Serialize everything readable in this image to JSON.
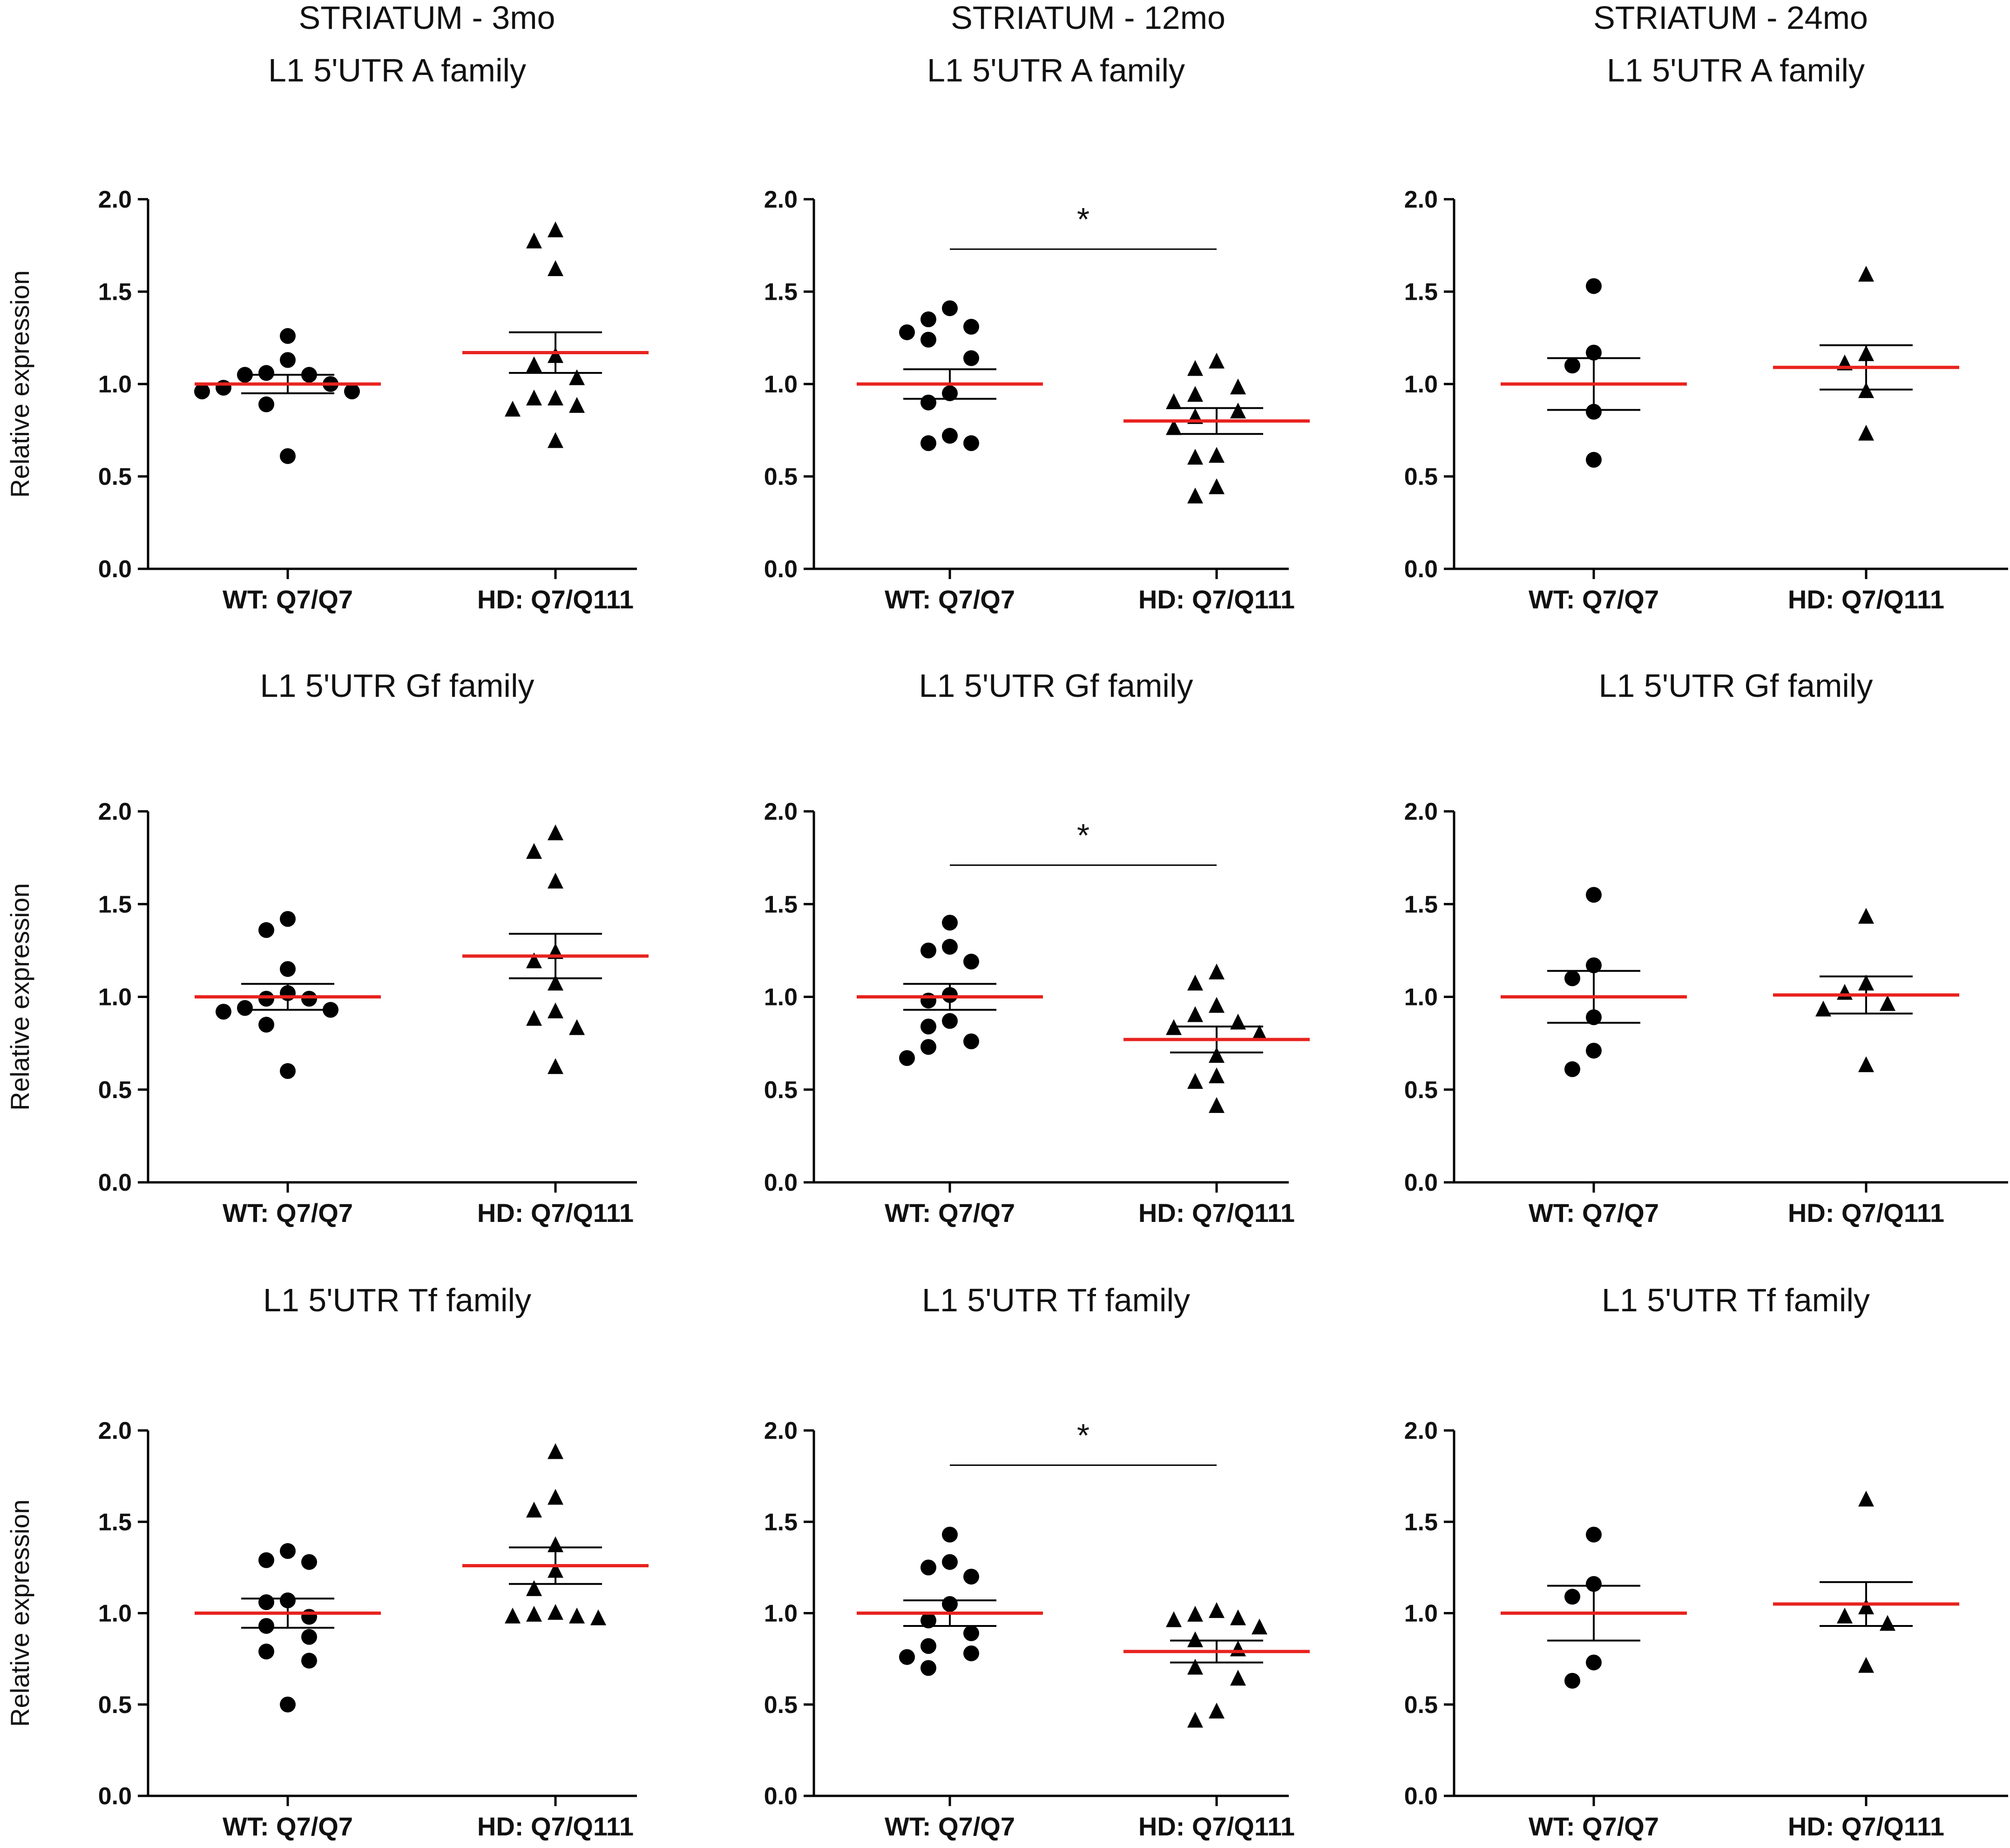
{
  "figure": {
    "column_titles": [
      "STRIATUM - 3mo",
      "STRIATUM - 12mo",
      "STRIATUM - 24mo"
    ],
    "ylabel": "Relative expression",
    "colors": {
      "mean_line": "#e8231f",
      "marks": "#000000",
      "axis": "#000000"
    }
  },
  "chart_data": [
    {
      "type": "scatter",
      "row": 0,
      "col": 0,
      "title": "L1 5'UTR A family",
      "ylabel": "Relative expression",
      "categories": [
        "WT: Q7/Q7",
        "HD: Q7/Q111"
      ],
      "ylim": [
        0,
        2.0
      ],
      "yticks": [
        "0.0",
        "0.5",
        "1.0",
        "1.5",
        "2.0"
      ],
      "series": [
        {
          "name": "WT: Q7/Q7",
          "marker": "circle",
          "values": [
            1.26,
            1.13,
            1.06,
            1.05,
            1.05,
            1.0,
            0.98,
            0.96,
            0.96,
            0.89,
            0.61
          ],
          "mean": 1.0,
          "sem": 0.05
        },
        {
          "name": "HD: Q7/Q111",
          "marker": "triangle",
          "values": [
            1.83,
            1.77,
            1.62,
            1.15,
            1.1,
            1.03,
            0.92,
            0.92,
            0.88,
            0.86,
            0.69
          ],
          "mean": 1.17,
          "sem": 0.11
        }
      ],
      "significance": null
    },
    {
      "type": "scatter",
      "row": 0,
      "col": 1,
      "title": "L1 5'UTR A family",
      "ylabel": "",
      "categories": [
        "WT: Q7/Q7",
        "HD: Q7/Q111"
      ],
      "ylim": [
        0,
        2.0
      ],
      "yticks": [
        "0.0",
        "0.5",
        "1.0",
        "1.5",
        "2.0"
      ],
      "series": [
        {
          "name": "WT: Q7/Q7",
          "marker": "circle",
          "values": [
            1.41,
            1.35,
            1.31,
            1.28,
            1.24,
            1.14,
            0.95,
            0.9,
            0.72,
            0.68,
            0.68
          ],
          "mean": 1.0,
          "sem": 0.08
        },
        {
          "name": "HD: Q7/Q111",
          "marker": "triangle",
          "values": [
            1.12,
            1.08,
            0.98,
            0.94,
            0.9,
            0.85,
            0.82,
            0.76,
            0.61,
            0.6,
            0.44,
            0.39
          ],
          "mean": 0.8,
          "sem": 0.07
        }
      ],
      "significance": {
        "label": "*",
        "y": 1.73
      }
    },
    {
      "type": "scatter",
      "row": 0,
      "col": 2,
      "title": "L1 5'UTR A family",
      "ylabel": "",
      "categories": [
        "WT: Q7/Q7",
        "HD: Q7/Q111"
      ],
      "ylim": [
        0,
        2.0
      ],
      "yticks": [
        "0.0",
        "0.5",
        "1.0",
        "1.5",
        "2.0"
      ],
      "series": [
        {
          "name": "WT: Q7/Q7",
          "marker": "circle",
          "values": [
            1.53,
            1.17,
            1.1,
            0.85,
            0.59
          ],
          "mean": 1.0,
          "sem": 0.14
        },
        {
          "name": "HD: Q7/Q111",
          "marker": "triangle",
          "values": [
            1.59,
            1.16,
            1.11,
            0.96,
            0.73
          ],
          "mean": 1.09,
          "sem": 0.12
        }
      ],
      "significance": null
    },
    {
      "type": "scatter",
      "row": 1,
      "col": 0,
      "title": "L1 5'UTR Gf family",
      "ylabel": "Relative expression",
      "categories": [
        "WT: Q7/Q7",
        "HD: Q7/Q111"
      ],
      "ylim": [
        0,
        2.0
      ],
      "yticks": [
        "0.0",
        "0.5",
        "1.0",
        "1.5",
        "2.0"
      ],
      "series": [
        {
          "name": "WT: Q7/Q7",
          "marker": "circle",
          "values": [
            1.42,
            1.36,
            1.15,
            1.02,
            0.99,
            0.99,
            0.94,
            0.93,
            0.92,
            0.85,
            0.6
          ],
          "mean": 1.0,
          "sem": 0.07
        },
        {
          "name": "HD: Q7/Q111",
          "marker": "triangle",
          "values": [
            1.88,
            1.78,
            1.62,
            1.24,
            1.19,
            1.07,
            0.92,
            0.88,
            0.83,
            0.62
          ],
          "mean": 1.22,
          "sem": 0.12
        }
      ],
      "significance": null
    },
    {
      "type": "scatter",
      "row": 1,
      "col": 1,
      "title": "L1 5'UTR Gf family",
      "ylabel": "",
      "categories": [
        "WT: Q7/Q7",
        "HD: Q7/Q111"
      ],
      "ylim": [
        0,
        2.0
      ],
      "yticks": [
        "0.0",
        "0.5",
        "1.0",
        "1.5",
        "2.0"
      ],
      "series": [
        {
          "name": "WT: Q7/Q7",
          "marker": "circle",
          "values": [
            1.4,
            1.27,
            1.25,
            1.19,
            1.01,
            0.98,
            0.87,
            0.84,
            0.76,
            0.73,
            0.67
          ],
          "mean": 1.0,
          "sem": 0.07
        },
        {
          "name": "HD: Q7/Q111",
          "marker": "triangle",
          "values": [
            1.13,
            1.07,
            0.95,
            0.9,
            0.86,
            0.83,
            0.8,
            0.68,
            0.57,
            0.54,
            0.41
          ],
          "mean": 0.77,
          "sem": 0.07
        }
      ],
      "significance": {
        "label": "*",
        "y": 1.71
      }
    },
    {
      "type": "scatter",
      "row": 1,
      "col": 2,
      "title": "L1 5'UTR Gf family",
      "ylabel": "",
      "categories": [
        "WT: Q7/Q7",
        "HD: Q7/Q111"
      ],
      "ylim": [
        0,
        2.0
      ],
      "yticks": [
        "0.0",
        "0.5",
        "1.0",
        "1.5",
        "2.0"
      ],
      "series": [
        {
          "name": "WT: Q7/Q7",
          "marker": "circle",
          "values": [
            1.55,
            1.17,
            1.1,
            0.89,
            0.71,
            0.61
          ],
          "mean": 1.0,
          "sem": 0.14
        },
        {
          "name": "HD: Q7/Q111",
          "marker": "triangle",
          "values": [
            1.43,
            1.07,
            1.02,
            0.96,
            0.93,
            0.63
          ],
          "mean": 1.01,
          "sem": 0.1
        }
      ],
      "significance": null
    },
    {
      "type": "scatter",
      "row": 2,
      "col": 0,
      "title": "L1 5'UTR Tf family",
      "ylabel": "Relative expression",
      "categories": [
        "WT: Q7/Q7",
        "HD: Q7/Q111"
      ],
      "ylim": [
        0,
        2.0
      ],
      "yticks": [
        "0.0",
        "0.5",
        "1.0",
        "1.5",
        "2.0"
      ],
      "series": [
        {
          "name": "WT: Q7/Q7",
          "marker": "circle",
          "values": [
            1.34,
            1.29,
            1.28,
            1.07,
            1.06,
            0.98,
            0.93,
            0.87,
            0.79,
            0.74,
            0.5
          ],
          "mean": 1.0,
          "sem": 0.08
        },
        {
          "name": "HD: Q7/Q111",
          "marker": "triangle",
          "values": [
            1.88,
            1.63,
            1.56,
            1.37,
            1.23,
            1.13,
            1.0,
            0.99,
            0.98,
            0.98,
            0.97
          ],
          "mean": 1.26,
          "sem": 0.1
        }
      ],
      "significance": null
    },
    {
      "type": "scatter",
      "row": 2,
      "col": 1,
      "title": "L1 5'UTR Tf family",
      "ylabel": "",
      "categories": [
        "WT: Q7/Q7",
        "HD: Q7/Q111"
      ],
      "ylim": [
        0,
        2.0
      ],
      "yticks": [
        "0.0",
        "0.5",
        "1.0",
        "1.5",
        "2.0"
      ],
      "series": [
        {
          "name": "WT: Q7/Q7",
          "marker": "circle",
          "values": [
            1.43,
            1.28,
            1.25,
            1.2,
            1.05,
            0.96,
            0.89,
            0.82,
            0.78,
            0.76,
            0.7
          ],
          "mean": 1.0,
          "sem": 0.07
        },
        {
          "name": "HD: Q7/Q111",
          "marker": "triangle",
          "values": [
            1.01,
            0.99,
            0.97,
            0.96,
            0.92,
            0.85,
            0.8,
            0.7,
            0.64,
            0.46,
            0.41
          ],
          "mean": 0.79,
          "sem": 0.06
        }
      ],
      "significance": {
        "label": "*",
        "y": 1.81
      }
    },
    {
      "type": "scatter",
      "row": 2,
      "col": 2,
      "title": "L1 5'UTR Tf family",
      "ylabel": "",
      "categories": [
        "WT: Q7/Q7",
        "HD: Q7/Q111"
      ],
      "ylim": [
        0,
        2.0
      ],
      "yticks": [
        "0.0",
        "0.5",
        "1.0",
        "1.5",
        "2.0"
      ],
      "series": [
        {
          "name": "WT: Q7/Q7",
          "marker": "circle",
          "values": [
            1.43,
            1.16,
            1.09,
            0.73,
            0.63
          ],
          "mean": 1.0,
          "sem": 0.15
        },
        {
          "name": "HD: Q7/Q111",
          "marker": "triangle",
          "values": [
            1.62,
            1.03,
            0.98,
            0.94,
            0.71
          ],
          "mean": 1.05,
          "sem": 0.12
        }
      ],
      "significance": null
    }
  ]
}
